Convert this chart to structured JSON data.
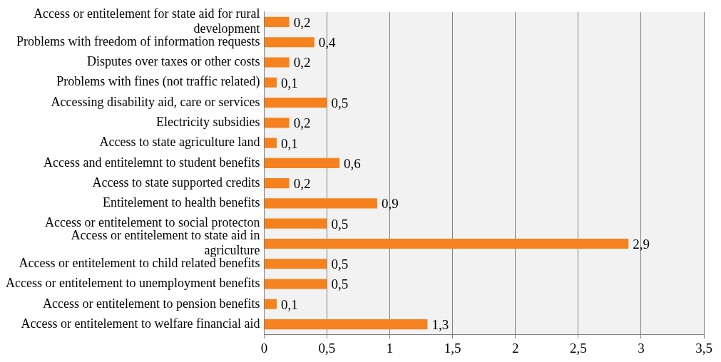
{
  "chart_data": {
    "type": "bar",
    "orientation": "horizontal",
    "categories": [
      "Access or entitelement for state aid for rural development",
      "Problems with freedom of information requests",
      "Disputes over taxes or other costs",
      "Problems with fines (not traffic related)",
      "Accessing disability aid, care or services",
      "Electricity subsidies",
      "Access to state agriculture land",
      "Access and entitelemnt to student benefits",
      "Access to state supported credits",
      "Entitelement to health benefits",
      "Access or entitelement to social protecton",
      "Access or entitelement to state aid in agriculture",
      "Access or entitelement to child related benefits",
      "Access or entitelement to unemployment benefits",
      "Access or entitelement to pension benefits",
      "Access or entitelement to welfare financial aid"
    ],
    "values": [
      0.2,
      0.4,
      0.2,
      0.1,
      0.5,
      0.2,
      0.1,
      0.6,
      0.2,
      0.9,
      0.5,
      2.9,
      0.5,
      0.5,
      0.1,
      1.3
    ],
    "value_labels": [
      "0,2",
      "0,4",
      "0,2",
      "0,1",
      "0,5",
      "0,2",
      "0,1",
      "0,6",
      "0,2",
      "0,9",
      "0,5",
      "2,9",
      "0,5",
      "0,5",
      "0,1",
      "1,3"
    ],
    "color": "#f5821f",
    "xlim": [
      0,
      3.5
    ],
    "xticks": [
      0,
      {
        "value": 0.5,
        "label": "0,5"
      },
      1,
      {
        "value": 1.5,
        "label": "1,5"
      },
      2,
      {
        "value": 2.5,
        "label": "2,5"
      },
      3,
      {
        "value": 3.5,
        "label": "3,5"
      }
    ],
    "grid": "x"
  }
}
